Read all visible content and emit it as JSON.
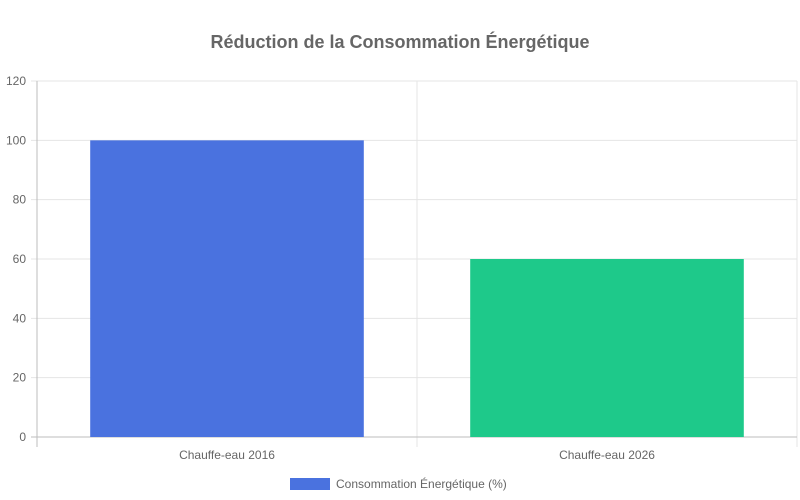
{
  "chart_data": {
    "type": "bar",
    "title": "Réduction de la Consommation Énergétique",
    "categories": [
      "Chauffe-eau 2016",
      "Chauffe-eau 2026"
    ],
    "series": [
      {
        "name": "Consommation Énergétique (%)",
        "values": [
          100,
          60
        ],
        "colors": [
          "#4a72df",
          "#1ec98a"
        ]
      }
    ],
    "ylim": [
      0,
      120
    ],
    "yticks": [
      0,
      20,
      40,
      60,
      80,
      100,
      120
    ],
    "xlabel": "",
    "ylabel": "",
    "grid": true,
    "legend_position": "bottom"
  }
}
